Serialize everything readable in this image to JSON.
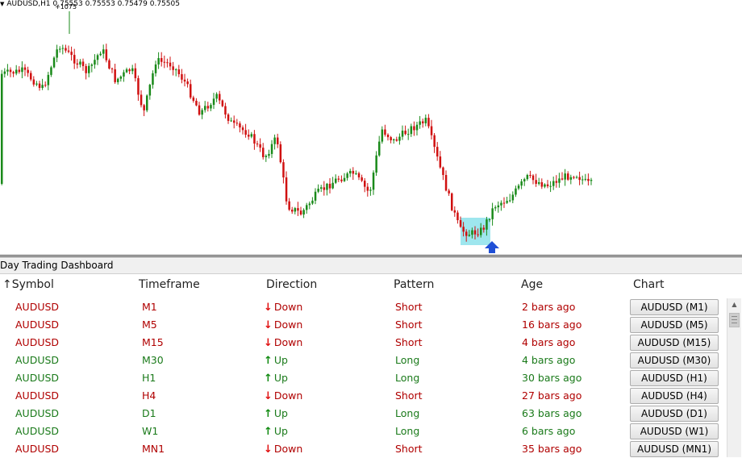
{
  "chart": {
    "header_text": "AUDUSD,H1  0.75553 0.75553 0.75479 0.75505",
    "peak_label": "+1075",
    "colors": {
      "bull": "#1a8a1a",
      "bear": "#d01010",
      "highlight": "#9ee6ee",
      "signal_arrow": "#1f4fd6"
    }
  },
  "dashboard": {
    "title": "Day Trading Dashboard",
    "columns": {
      "symbol": "Symbol",
      "timeframe": "Timeframe",
      "direction": "Direction",
      "pattern": "Pattern",
      "age": "Age",
      "chart": "Chart"
    },
    "sort_icon": "sort-up-arrow-icon",
    "rows": [
      {
        "symbol": "AUDUSD",
        "timeframe": "M1",
        "direction": "Down",
        "pattern": "Short",
        "age": "2 bars ago",
        "chart": "AUDUSD (M1)",
        "color": "red"
      },
      {
        "symbol": "AUDUSD",
        "timeframe": "M5",
        "direction": "Down",
        "pattern": "Short",
        "age": "16 bars ago",
        "chart": "AUDUSD (M5)",
        "color": "red"
      },
      {
        "symbol": "AUDUSD",
        "timeframe": "M15",
        "direction": "Down",
        "pattern": "Short",
        "age": "4 bars ago",
        "chart": "AUDUSD (M15)",
        "color": "red"
      },
      {
        "symbol": "AUDUSD",
        "timeframe": "M30",
        "direction": "Up",
        "pattern": "Long",
        "age": "4 bars ago",
        "chart": "AUDUSD (M30)",
        "color": "green"
      },
      {
        "symbol": "AUDUSD",
        "timeframe": "H1",
        "direction": "Up",
        "pattern": "Long",
        "age": "30 bars ago",
        "chart": "AUDUSD (H1)",
        "color": "green"
      },
      {
        "symbol": "AUDUSD",
        "timeframe": "H4",
        "direction": "Down",
        "pattern": "Short",
        "age": "27 bars ago",
        "chart": "AUDUSD (H4)",
        "color": "red"
      },
      {
        "symbol": "AUDUSD",
        "timeframe": "D1",
        "direction": "Up",
        "pattern": "Long",
        "age": "63 bars ago",
        "chart": "AUDUSD (D1)",
        "color": "green"
      },
      {
        "symbol": "AUDUSD",
        "timeframe": "W1",
        "direction": "Up",
        "pattern": "Long",
        "age": "6 bars ago",
        "chart": "AUDUSD (W1)",
        "color": "green"
      },
      {
        "symbol": "AUDUSD",
        "timeframe": "MN1",
        "direction": "Down",
        "pattern": "Short",
        "age": "35 bars ago",
        "chart": "AUDUSD (MN1)",
        "color": "red"
      }
    ]
  }
}
